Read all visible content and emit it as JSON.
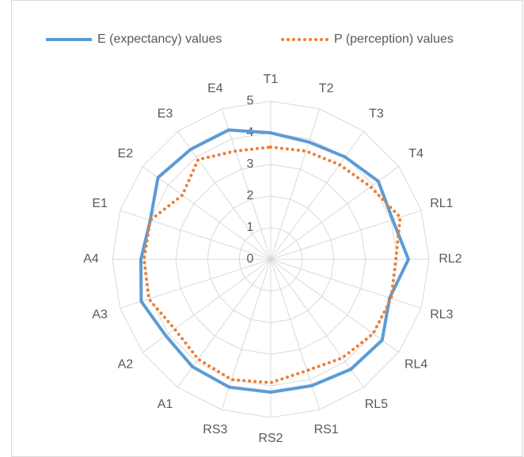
{
  "chart_data": {
    "type": "radar",
    "categories": [
      "T1",
      "T2",
      "T3",
      "T4",
      "RL1",
      "RL2",
      "RL3",
      "RL4",
      "RL5",
      "RS1",
      "RS2",
      "RS3",
      "A1",
      "A2",
      "A3",
      "A4",
      "E1",
      "E2",
      "E3",
      "E4"
    ],
    "series": [
      {
        "name": "E (expectancy) values",
        "color": "#5b9bd5",
        "style": "solid",
        "values": [
          4.0,
          3.9,
          4.0,
          4.2,
          4.05,
          4.35,
          3.95,
          4.35,
          4.3,
          4.2,
          4.2,
          4.25,
          4.2,
          4.1,
          4.3,
          4.1,
          4.0,
          4.4,
          4.3,
          4.3
        ]
      },
      {
        "name": "P (perception) values",
        "color": "#ed7d31",
        "style": "dotted",
        "values": [
          3.55,
          3.6,
          3.7,
          3.9,
          4.3,
          3.95,
          4.0,
          4.0,
          3.85,
          3.7,
          3.9,
          4.0,
          3.9,
          3.75,
          4.05,
          4.0,
          4.0,
          3.45,
          3.9,
          3.6
        ]
      }
    ],
    "rlim": [
      0,
      5
    ],
    "rticks": [
      0,
      1,
      2,
      3,
      4,
      5
    ],
    "grid": true,
    "legend": "top"
  }
}
